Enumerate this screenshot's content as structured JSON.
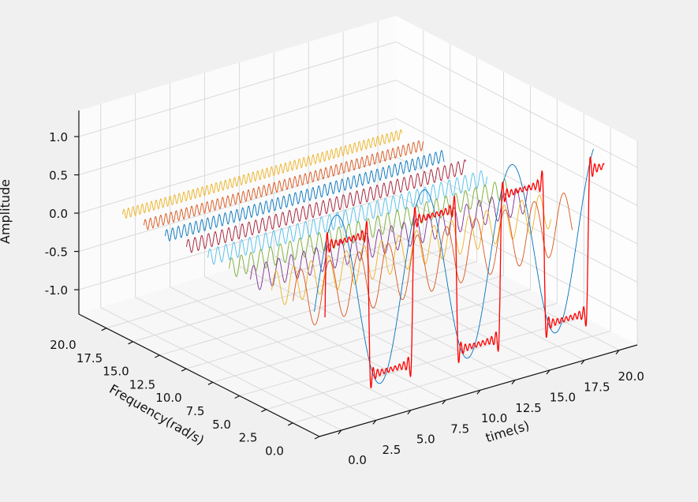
{
  "chart_data": {
    "type": "line",
    "projection": "3d",
    "xlabel": "time(s)",
    "ylabel": "Frequency(rad/s)",
    "zlabel": "Amplitude",
    "x_ticks": [
      "0.0",
      "2.5",
      "5.0",
      "7.5",
      "10.0",
      "12.5",
      "15.0",
      "17.5",
      "20.0"
    ],
    "y_ticks": [
      "20.0",
      "17.5",
      "15.0",
      "12.5",
      "10.0",
      "7.5",
      "5.0",
      "2.5",
      "0.0"
    ],
    "z_ticks": [
      "1.0",
      "0.5",
      "0.0",
      "-0.5",
      "-1.0"
    ],
    "xlim": [
      0,
      20
    ],
    "ylim": [
      0,
      20
    ],
    "zlim": [
      -1.33,
      1.33
    ],
    "grid": true,
    "t_range": [
      0,
      20
    ],
    "harmonics": [
      {
        "frequency": 1,
        "amplitude": 1.273,
        "color": "#0072BD"
      },
      {
        "frequency": 3,
        "amplitude": 0.424,
        "color": "#D95319"
      },
      {
        "frequency": 5,
        "amplitude": 0.255,
        "color": "#EDB120"
      },
      {
        "frequency": 7,
        "amplitude": 0.182,
        "color": "#7E2F8E"
      },
      {
        "frequency": 9,
        "amplitude": 0.141,
        "color": "#77AC30"
      },
      {
        "frequency": 11,
        "amplitude": 0.116,
        "color": "#4DBEEE"
      },
      {
        "frequency": 13,
        "amplitude": 0.098,
        "color": "#A2142F"
      },
      {
        "frequency": 15,
        "amplitude": 0.085,
        "color": "#0072BD"
      },
      {
        "frequency": 17,
        "amplitude": 0.075,
        "color": "#D95319"
      },
      {
        "frequency": 19,
        "amplitude": 0.067,
        "color": "#EDB120"
      }
    ],
    "sum_series": {
      "frequency": 0,
      "color": "#FF0000",
      "description": "sum of harmonics (square wave)"
    }
  }
}
